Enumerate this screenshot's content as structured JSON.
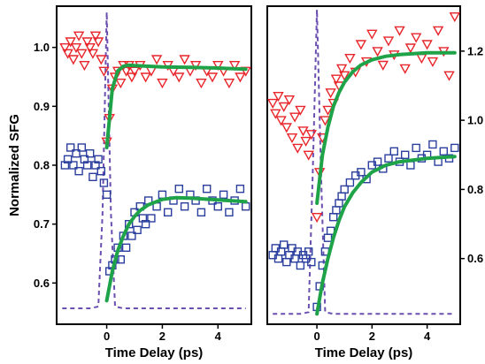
{
  "chart_data": [
    {
      "type": "scatter",
      "title": "",
      "xlabel": "Time Delay (ps)",
      "ylabel": "Normalized SFG",
      "xlim": [
        -1.8,
        5.2
      ],
      "ylim": [
        0.53,
        1.07
      ],
      "x_ticks": [
        0,
        2,
        4
      ],
      "y_ticks": [
        0.6,
        0.7,
        0.8,
        0.9,
        1.0
      ],
      "x_tick_labels": [
        "0",
        "2",
        "4"
      ],
      "y_tick_labels": [
        "0.6",
        "0.7",
        "0.8",
        "0.9",
        "1.0"
      ],
      "y_axis_side": "left",
      "grid": false,
      "legend": "none",
      "series": [
        {
          "marker": "triangle-down",
          "color": "#e8252a",
          "x": [
            -1.5,
            -1.4,
            -1.3,
            -1.2,
            -1.1,
            -1.0,
            -0.9,
            -0.8,
            -0.7,
            -0.6,
            -0.5,
            -0.4,
            -0.3,
            -0.2,
            -0.1,
            0.0,
            0.1,
            0.2,
            0.3,
            0.4,
            0.5,
            0.6,
            0.7,
            0.8,
            0.9,
            1.0,
            1.2,
            1.4,
            1.6,
            1.8,
            2.0,
            2.2,
            2.4,
            2.6,
            2.8,
            3.0,
            3.2,
            3.4,
            3.6,
            3.8,
            4.0,
            4.2,
            4.4,
            4.6,
            4.8,
            5.0
          ],
          "y": [
            1.0,
            0.99,
            1.01,
            0.98,
            1.0,
            1.02,
            0.99,
            0.97,
            1.01,
            1.0,
            0.99,
            1.02,
            1.01,
            0.98,
            0.96,
            0.84,
            0.88,
            0.93,
            0.95,
            0.96,
            0.94,
            0.97,
            0.96,
            0.97,
            0.95,
            0.96,
            0.97,
            0.95,
            0.96,
            0.98,
            0.94,
            0.97,
            0.96,
            0.95,
            0.98,
            0.96,
            0.97,
            0.94,
            0.96,
            0.95,
            0.97,
            0.96,
            0.94,
            0.97,
            0.95,
            0.96
          ]
        },
        {
          "marker": "square",
          "color": "#2b3f9e",
          "x": [
            -1.5,
            -1.4,
            -1.3,
            -1.2,
            -1.1,
            -1.0,
            -0.9,
            -0.8,
            -0.7,
            -0.6,
            -0.5,
            -0.4,
            -0.3,
            -0.2,
            -0.1,
            0.0,
            0.1,
            0.2,
            0.3,
            0.4,
            0.5,
            0.6,
            0.7,
            0.8,
            0.9,
            1.0,
            1.1,
            1.2,
            1.3,
            1.4,
            1.5,
            1.6,
            1.8,
            2.0,
            2.2,
            2.4,
            2.6,
            2.8,
            3.0,
            3.2,
            3.4,
            3.6,
            3.8,
            4.0,
            4.2,
            4.4,
            4.6,
            4.8,
            5.0
          ],
          "y": [
            0.8,
            0.81,
            0.83,
            0.8,
            0.82,
            0.79,
            0.83,
            0.81,
            0.8,
            0.82,
            0.78,
            0.8,
            0.81,
            0.79,
            0.77,
            0.75,
            0.62,
            0.63,
            0.64,
            0.66,
            0.64,
            0.68,
            0.66,
            0.7,
            0.68,
            0.72,
            0.69,
            0.73,
            0.71,
            0.7,
            0.74,
            0.71,
            0.73,
            0.75,
            0.72,
            0.74,
            0.76,
            0.73,
            0.75,
            0.74,
            0.72,
            0.76,
            0.74,
            0.73,
            0.75,
            0.72,
            0.74,
            0.76,
            0.73
          ]
        }
      ],
      "fits": [
        {
          "color": "#1fa348",
          "x": [
            0.0,
            0.2,
            0.4,
            0.6,
            0.8,
            1.0,
            1.5,
            2.0,
            3.0,
            4.0,
            5.0
          ],
          "y": [
            0.83,
            0.93,
            0.96,
            0.968,
            0.97,
            0.969,
            0.968,
            0.967,
            0.966,
            0.965,
            0.963
          ]
        },
        {
          "color": "#1fa348",
          "x": [
            0.0,
            0.2,
            0.4,
            0.6,
            0.8,
            1.0,
            1.2,
            1.5,
            2.0,
            2.5,
            3.0,
            4.0,
            5.0
          ],
          "y": [
            0.57,
            0.62,
            0.655,
            0.68,
            0.7,
            0.713,
            0.723,
            0.733,
            0.742,
            0.745,
            0.744,
            0.741,
            0.738
          ]
        }
      ],
      "pulse": {
        "color": "#6b4fb0",
        "x": [
          -1.6,
          -0.6,
          -0.3,
          -0.15,
          0.0,
          0.15,
          0.3,
          0.6,
          5.0
        ],
        "y": [
          0.557,
          0.557,
          0.56,
          0.72,
          1.06,
          0.72,
          0.56,
          0.557,
          0.557
        ]
      }
    },
    {
      "type": "scatter",
      "title": "",
      "xlabel": "Time Delay (ps)",
      "ylabel": "",
      "xlim": [
        -1.8,
        5.2
      ],
      "ylim": [
        0.41,
        1.33
      ],
      "x_ticks": [
        0,
        2,
        4
      ],
      "y_ticks": [
        0.6,
        0.8,
        1.0,
        1.2
      ],
      "x_tick_labels": [
        "0",
        "2",
        "4"
      ],
      "y_tick_labels": [
        "0.6",
        "0.8",
        "1.0",
        "1.2"
      ],
      "y_axis_side": "right",
      "grid": false,
      "legend": "none",
      "series": [
        {
          "marker": "triangle-down",
          "color": "#e8252a",
          "x": [
            -1.6,
            -1.5,
            -1.4,
            -1.3,
            -1.2,
            -1.1,
            -1.0,
            -0.9,
            -0.8,
            -0.7,
            -0.6,
            -0.5,
            -0.4,
            -0.3,
            -0.2,
            0.0,
            0.1,
            0.2,
            0.3,
            0.4,
            0.5,
            0.6,
            0.7,
            0.8,
            0.9,
            1.0,
            1.2,
            1.4,
            1.6,
            1.8,
            2.0,
            2.2,
            2.4,
            2.6,
            2.8,
            3.0,
            3.2,
            3.4,
            3.6,
            3.8,
            4.0,
            4.2,
            4.4,
            4.6,
            4.8,
            5.0
          ],
          "y": [
            1.05,
            1.02,
            1.07,
            1.0,
            1.04,
            0.98,
            1.06,
            0.95,
            1.01,
            0.92,
            1.03,
            0.97,
            0.94,
            0.9,
            0.96,
            0.72,
            0.85,
            0.95,
            1.0,
            1.03,
            1.08,
            1.05,
            1.12,
            1.1,
            1.15,
            1.13,
            1.18,
            1.14,
            1.22,
            1.17,
            1.25,
            1.2,
            1.16,
            1.23,
            1.19,
            1.26,
            1.15,
            1.21,
            1.24,
            1.18,
            1.22,
            1.17,
            1.26,
            1.2,
            1.13,
            1.3
          ]
        },
        {
          "marker": "square",
          "color": "#2b3f9e",
          "x": [
            -1.6,
            -1.5,
            -1.4,
            -1.3,
            -1.2,
            -1.1,
            -1.0,
            -0.9,
            -0.8,
            -0.7,
            -0.6,
            -0.5,
            -0.4,
            -0.3,
            -0.2,
            0.0,
            0.1,
            0.2,
            0.3,
            0.4,
            0.5,
            0.6,
            0.7,
            0.8,
            0.9,
            1.0,
            1.2,
            1.4,
            1.6,
            1.8,
            2.0,
            2.2,
            2.4,
            2.6,
            2.8,
            3.0,
            3.2,
            3.4,
            3.6,
            3.8,
            4.0,
            4.2,
            4.4,
            4.6,
            4.8,
            5.0
          ],
          "y": [
            0.61,
            0.63,
            0.6,
            0.62,
            0.64,
            0.59,
            0.61,
            0.63,
            0.6,
            0.62,
            0.58,
            0.61,
            0.6,
            0.62,
            0.59,
            0.46,
            0.52,
            0.58,
            0.62,
            0.66,
            0.68,
            0.72,
            0.74,
            0.76,
            0.78,
            0.8,
            0.82,
            0.84,
            0.85,
            0.83,
            0.87,
            0.88,
            0.86,
            0.89,
            0.91,
            0.88,
            0.9,
            0.87,
            0.92,
            0.89,
            0.9,
            0.93,
            0.88,
            0.91,
            0.89,
            0.92
          ]
        }
      ],
      "fits": [
        {
          "color": "#1fa348",
          "x": [
            0.0,
            0.2,
            0.4,
            0.6,
            0.8,
            1.0,
            1.3,
            1.6,
            2.0,
            2.5,
            3.0,
            4.0,
            5.0
          ],
          "y": [
            0.76,
            0.9,
            0.98,
            1.04,
            1.08,
            1.11,
            1.14,
            1.16,
            1.175,
            1.185,
            1.19,
            1.195,
            1.195
          ]
        },
        {
          "color": "#1fa348",
          "x": [
            0.0,
            0.2,
            0.4,
            0.6,
            0.8,
            1.0,
            1.3,
            1.6,
            2.0,
            2.5,
            3.0,
            4.0,
            5.0
          ],
          "y": [
            0.44,
            0.53,
            0.6,
            0.66,
            0.71,
            0.75,
            0.79,
            0.82,
            0.85,
            0.87,
            0.88,
            0.89,
            0.895
          ]
        }
      ],
      "pulse": {
        "color": "#6b4fb0",
        "x": [
          -1.6,
          -0.6,
          -0.3,
          -0.15,
          0.0,
          0.15,
          0.3,
          0.6,
          5.0
        ],
        "y": [
          0.44,
          0.44,
          0.445,
          0.85,
          1.32,
          0.85,
          0.445,
          0.44,
          0.44
        ]
      }
    }
  ]
}
